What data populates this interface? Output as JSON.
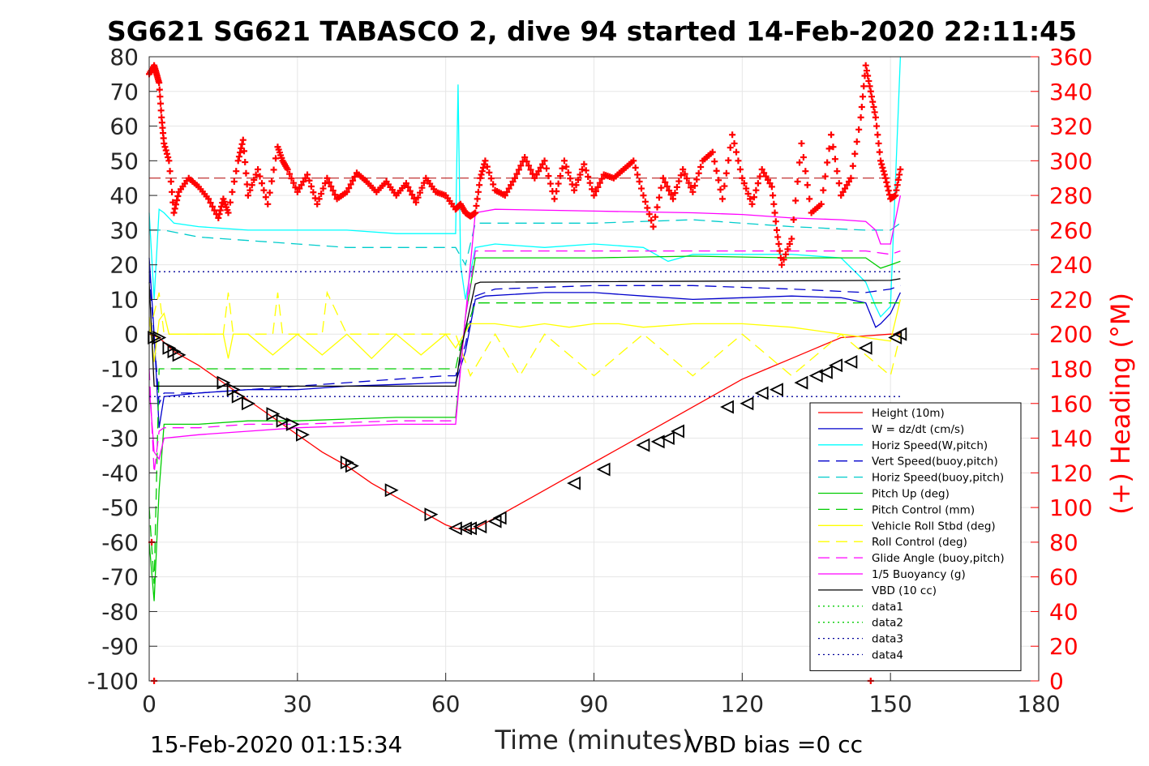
{
  "chart_data": {
    "type": "line",
    "title": "SG621 SG621 TABASCO 2, dive 94 started 14-Feb-2020 22:11:45",
    "xlabel": "Time (minutes)",
    "ylabel": "",
    "y2label": "(+) Heading (°M)",
    "xlim": [
      0,
      180
    ],
    "ylim": [
      -100,
      80
    ],
    "y2lim": [
      0,
      360
    ],
    "grid": true,
    "legend_position": "bottom-right",
    "xticks": [
      "0",
      "30",
      "60",
      "90",
      "120",
      "150",
      "180"
    ],
    "yticks": [
      "80",
      "70",
      "60",
      "50",
      "40",
      "30",
      "20",
      "10",
      "0",
      "-10",
      "-20",
      "-30",
      "-40",
      "-50",
      "-60",
      "-70",
      "-80",
      "-90",
      "-100"
    ],
    "y2ticks": [
      "360",
      "340",
      "320",
      "300",
      "280",
      "260",
      "240",
      "220",
      "200",
      "180",
      "160",
      "140",
      "120",
      "100",
      "80",
      "60",
      "40",
      "20",
      "0"
    ],
    "footer_left": "15-Feb-2020 01:15:34",
    "footer_right": "VBD bias =0 cc",
    "colors": {
      "red": "#ff0000",
      "blue": "#0000cc",
      "cyan": "#00ffff",
      "green": "#00cc00",
      "yellow": "#ffff00",
      "magenta": "#ff00ff",
      "black": "#000000"
    },
    "series": [
      {
        "name": "Height (10m)",
        "style": "solid",
        "color": "#ff0000",
        "x": [
          0,
          2,
          5,
          10,
          15,
          20,
          25,
          30,
          35,
          40,
          45,
          50,
          55,
          60,
          62,
          64,
          66,
          70,
          75,
          80,
          85,
          90,
          95,
          100,
          105,
          110,
          115,
          120,
          125,
          130,
          135,
          140,
          145,
          150,
          152
        ],
        "y": [
          0,
          -1,
          -5,
          -9,
          -14,
          -19,
          -24,
          -29,
          -34,
          -38,
          -43,
          -47,
          -51,
          -55,
          -56,
          -56.5,
          -56,
          -53,
          -49,
          -45,
          -41,
          -37,
          -33,
          -29,
          -25,
          -21,
          -17,
          -13,
          -10,
          -7,
          -4,
          -1,
          -0.5,
          0,
          0
        ]
      },
      {
        "name": "W = dz/dt (cm/s)",
        "style": "solid",
        "color": "#0000cc",
        "x": [
          0,
          1,
          2,
          3,
          10,
          20,
          30,
          40,
          50,
          60,
          62,
          64,
          66,
          68,
          80,
          90,
          100,
          110,
          120,
          130,
          140,
          145,
          147,
          148,
          150,
          152
        ],
        "y": [
          22,
          0,
          -27,
          -18,
          -17,
          -16,
          -16,
          -15,
          -14.5,
          -14,
          -14,
          -5,
          10,
          11,
          12,
          12,
          11,
          10,
          10.5,
          11,
          10.5,
          9,
          2,
          3,
          6,
          12
        ]
      },
      {
        "name": "Horiz Speed(W,pitch)",
        "style": "solid",
        "color": "#00ffff",
        "x": [
          0,
          1,
          2,
          3,
          5,
          10,
          20,
          30,
          40,
          50,
          60,
          62,
          62.5,
          63,
          64,
          66,
          70,
          80,
          90,
          100,
          105,
          110,
          120,
          130,
          140,
          145,
          147,
          148,
          150,
          152
        ],
        "y": [
          35,
          10,
          36,
          35,
          32,
          31,
          30,
          30,
          30,
          29,
          29,
          29,
          72,
          20,
          10,
          25,
          26,
          25,
          26,
          25,
          21,
          23,
          23,
          23,
          22,
          15,
          8,
          5,
          8,
          80
        ]
      },
      {
        "name": "Vert Speed(buoy,pitch)",
        "style": "dashed",
        "color": "#0000cc",
        "x": [
          0,
          2,
          3,
          10,
          20,
          30,
          40,
          50,
          60,
          62,
          64,
          66,
          70,
          90,
          110,
          130,
          145,
          150,
          152
        ],
        "y": [
          18,
          -20,
          -17,
          -17,
          -16,
          -15,
          -14,
          -13,
          -12,
          -12,
          -3,
          11,
          13,
          14,
          14,
          13,
          12,
          13,
          14
        ]
      },
      {
        "name": "Horiz Speed(buoy,pitch)",
        "style": "dashed",
        "color": "#00cccc",
        "x": [
          0,
          2,
          3,
          10,
          20,
          30,
          40,
          50,
          60,
          62,
          64,
          66,
          70,
          90,
          110,
          130,
          145,
          150,
          152
        ],
        "y": [
          30,
          30,
          30,
          28,
          27,
          26,
          25,
          25,
          25,
          25,
          20,
          32,
          32,
          32,
          33,
          31,
          30,
          30,
          32
        ]
      },
      {
        "name": "Pitch Up (deg)",
        "style": "solid",
        "color": "#00cc00",
        "x": [
          0,
          1,
          2,
          3,
          10,
          20,
          30,
          40,
          50,
          60,
          62,
          64,
          66,
          70,
          90,
          110,
          130,
          145,
          148,
          150,
          152
        ],
        "y": [
          -60,
          -77,
          -45,
          -26,
          -26,
          -25,
          -25,
          -24.5,
          -24,
          -24,
          -24,
          5,
          22,
          22,
          22,
          22.5,
          22,
          22,
          19,
          20,
          21
        ]
      },
      {
        "name": "Pitch Control (mm)",
        "style": "dashed",
        "color": "#00cc00",
        "x": [
          0,
          1,
          2,
          3,
          10,
          62,
          63,
          66,
          70,
          150,
          152
        ],
        "y": [
          -50,
          -72,
          -10,
          -10,
          -10,
          -10,
          -3,
          9,
          9,
          9,
          9
        ]
      },
      {
        "name": "Vehicle Roll Stbd (deg)",
        "style": "solid",
        "color": "#ffff00",
        "x": [
          0,
          1,
          2,
          3,
          4,
          5,
          10,
          15,
          16,
          17,
          20,
          25,
          30,
          35,
          40,
          45,
          50,
          55,
          60,
          62,
          65,
          70,
          75,
          80,
          85,
          90,
          95,
          100,
          110,
          120,
          130,
          140,
          150,
          152
        ],
        "y": [
          5,
          -8,
          4,
          6,
          0,
          0,
          0,
          0,
          -7,
          0,
          0,
          -6,
          0,
          -6,
          0,
          -7,
          0,
          -6,
          0,
          -4,
          3,
          3,
          2,
          3,
          2,
          3,
          3,
          2,
          3,
          3,
          2,
          0,
          -2,
          10
        ]
      },
      {
        "name": "Roll Control (deg)",
        "style": "dashed",
        "color": "#ffff00",
        "x": [
          0,
          2,
          3,
          5,
          15,
          16,
          17,
          25,
          26,
          27,
          35,
          36,
          40,
          60,
          62,
          65,
          70,
          75,
          80,
          90,
          100,
          110,
          120,
          130,
          140,
          150,
          152
        ],
        "y": [
          0,
          12,
          0,
          0,
          0,
          12,
          0,
          0,
          12,
          0,
          0,
          12,
          0,
          0,
          0,
          -12,
          0,
          -12,
          0,
          -12,
          0,
          -12,
          0,
          -12,
          0,
          -12,
          0
        ]
      },
      {
        "name": "Glide Angle (buoy,pitch)",
        "style": "dashed",
        "color": "#ff00ff",
        "x": [
          0,
          1,
          2,
          3,
          10,
          20,
          30,
          40,
          50,
          60,
          62,
          64,
          66,
          70,
          90,
          110,
          130,
          145,
          150,
          152
        ],
        "y": [
          -10,
          -40,
          -28,
          -27,
          -27,
          -26,
          -26,
          -25.5,
          -25,
          -25,
          -25,
          5,
          24,
          24,
          24,
          24,
          24,
          24,
          23,
          24
        ]
      },
      {
        "name": "1/5 Buoyancy (g)",
        "style": "solid",
        "color": "#ff00ff",
        "x": [
          0,
          1,
          2,
          3,
          10,
          20,
          30,
          40,
          50,
          60,
          62,
          63,
          64,
          66,
          70,
          90,
          110,
          120,
          130,
          140,
          145,
          147,
          148,
          150,
          152
        ],
        "y": [
          -15,
          -34,
          -36,
          -30,
          -29,
          -28,
          -27,
          -26.5,
          -26,
          -26,
          -26,
          -10,
          5,
          35,
          36,
          35.5,
          35,
          34.5,
          33.5,
          33,
          32.5,
          30,
          26,
          26,
          40
        ]
      },
      {
        "name": "VBD (10 cc)",
        "style": "solid",
        "color": "#000000",
        "x": [
          0,
          1,
          2,
          62,
          63,
          66,
          67,
          150,
          152
        ],
        "y": [
          15,
          -15,
          -15,
          -15,
          -5,
          14.5,
          15,
          15.5,
          16
        ]
      },
      {
        "name": "data1",
        "style": "dotted",
        "color": "#00cc00",
        "x": [],
        "y": []
      },
      {
        "name": "data2",
        "style": "dotted",
        "color": "#00cc00",
        "x": [],
        "y": []
      },
      {
        "name": "data3",
        "style": "dotted",
        "color": "#000099",
        "x": [
          0,
          152
        ],
        "y": [
          18,
          18
        ]
      },
      {
        "name": "data4",
        "style": "dotted",
        "color": "#000099",
        "x": [
          0,
          152
        ],
        "y": [
          -18,
          -18
        ]
      }
    ],
    "heading": {
      "color": "#ff0000",
      "marker": "+",
      "axis": "right",
      "reference": 290,
      "x": [
        0,
        1,
        1.5,
        2,
        2.5,
        3,
        4,
        5,
        6,
        8,
        10,
        12,
        14,
        15,
        16,
        18,
        19,
        20,
        22,
        24,
        26,
        27,
        28,
        30,
        32,
        34,
        36,
        38,
        40,
        42,
        44,
        46,
        48,
        50,
        52,
        54,
        56,
        58,
        60,
        62,
        63,
        64,
        65,
        66,
        67,
        68,
        70,
        72,
        74,
        76,
        78,
        80,
        82,
        84,
        86,
        88,
        90,
        92,
        94,
        96,
        98,
        100,
        102,
        104,
        106,
        108,
        110,
        112,
        114,
        116,
        118,
        120,
        122,
        124,
        126,
        127,
        128,
        130,
        132,
        134,
        136,
        138,
        140,
        142,
        144,
        145,
        146,
        147,
        148,
        149,
        150,
        151,
        152
      ],
      "y": [
        350,
        355,
        350,
        345,
        325,
        310,
        300,
        270,
        282,
        290,
        285,
        278,
        267,
        278,
        270,
        300,
        312,
        280,
        295,
        275,
        308,
        300,
        295,
        282,
        292,
        275,
        290,
        278,
        282,
        293,
        288,
        282,
        288,
        280,
        287,
        276,
        290,
        282,
        280,
        272,
        275,
        270,
        268,
        270,
        290,
        300,
        283,
        280,
        290,
        302,
        290,
        300,
        278,
        300,
        283,
        298,
        280,
        292,
        290,
        295,
        300,
        280,
        262,
        290,
        278,
        295,
        282,
        300,
        305,
        278,
        315,
        290,
        275,
        295,
        285,
        260,
        240,
        255,
        310,
        270,
        275,
        315,
        280,
        290,
        325,
        355,
        340,
        325,
        300,
        290,
        278,
        280,
        295
      ]
    },
    "heading_spikes": {
      "x": [
        0.5,
        1,
        145,
        146
      ],
      "y": [
        80,
        0,
        10,
        0
      ]
    },
    "markers": {
      "x": [
        1,
        2,
        4,
        5,
        6,
        15,
        17,
        18,
        20,
        25,
        27,
        29,
        31,
        40,
        41,
        49,
        57,
        62,
        64,
        65,
        67,
        70,
        71,
        86,
        92,
        100,
        103,
        105,
        107,
        117,
        121,
        124,
        127,
        132,
        135,
        137,
        139,
        142,
        145,
        151,
        152
      ],
      "y": [
        -1,
        -1,
        -4,
        -5,
        -6,
        -14,
        -16,
        -18,
        -20,
        -23,
        -25,
        -26,
        -29,
        -37,
        -38,
        -45,
        -52,
        -56,
        -56,
        -56,
        -55.5,
        -54,
        -53,
        -43,
        -39,
        -32,
        -31,
        -30,
        -28,
        -21,
        -20,
        -17,
        -16,
        -14,
        -12,
        -11,
        -9,
        -8,
        -4,
        -1,
        0
      ]
    }
  }
}
